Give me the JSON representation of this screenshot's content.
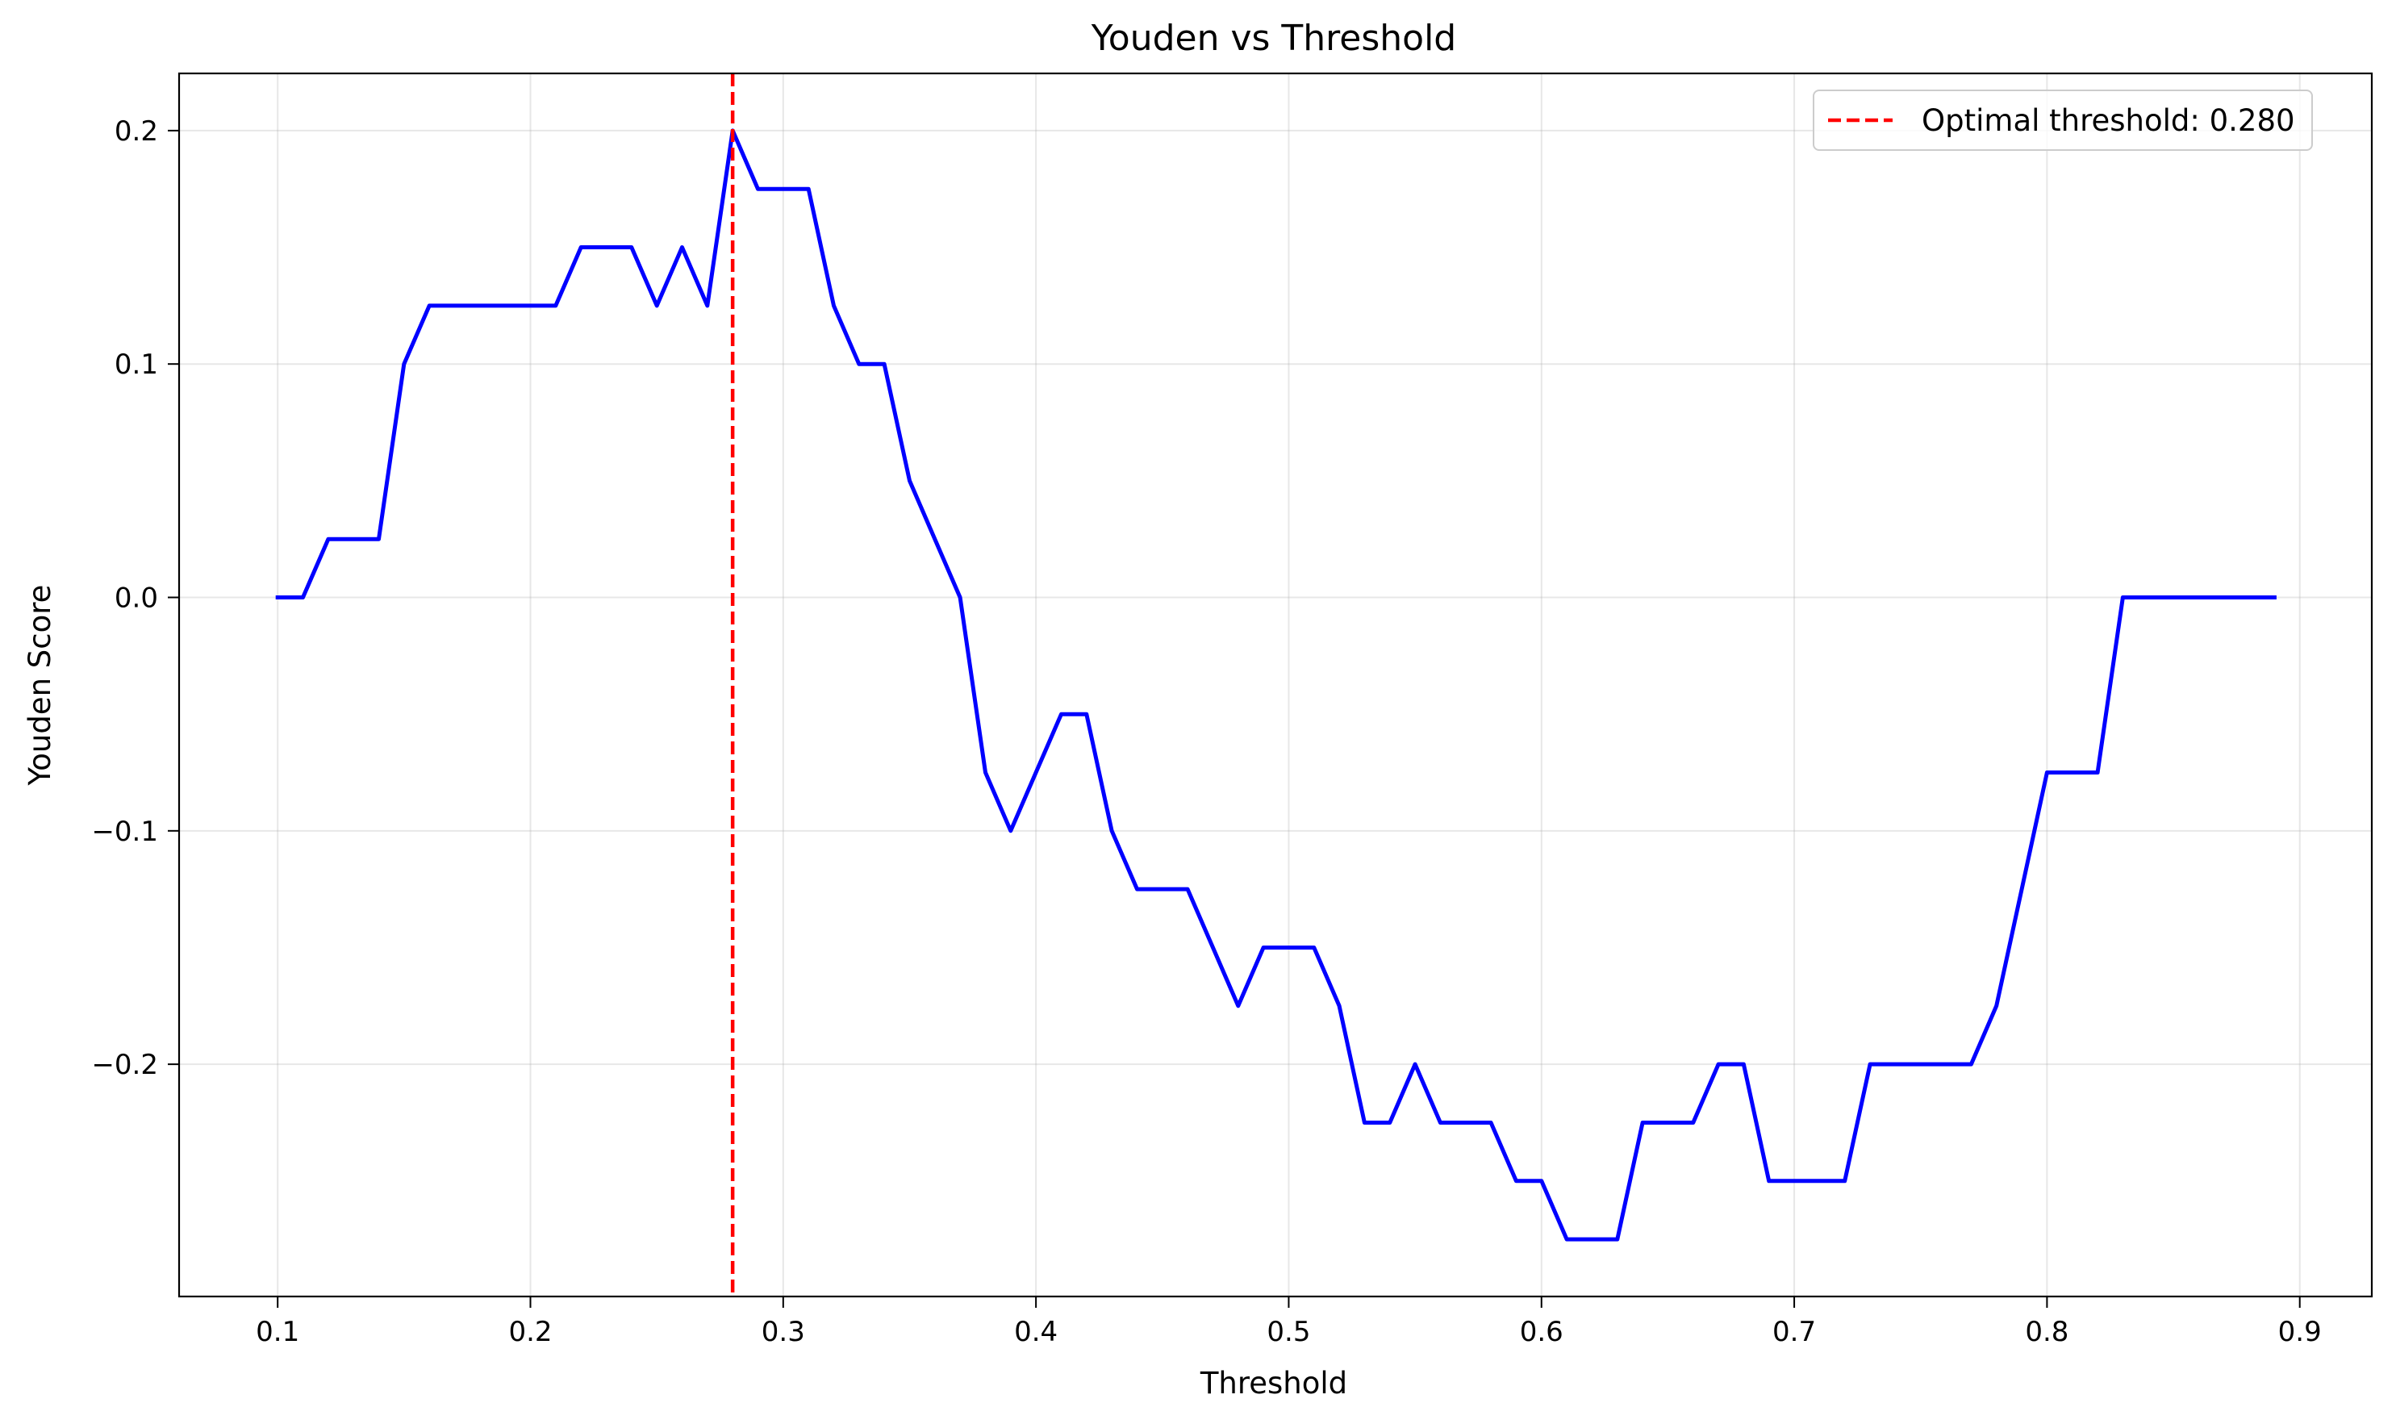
{
  "chart_data": {
    "type": "line",
    "title": "Youden vs Threshold",
    "xlabel": "Threshold",
    "ylabel": "Youden Score",
    "xlim": [
      0.061,
      0.9285
    ],
    "ylim": [
      -0.2995,
      0.2245
    ],
    "xticks": [
      0.1,
      0.2,
      0.3,
      0.4,
      0.5,
      0.6,
      0.7,
      0.8,
      0.9
    ],
    "xtick_labels": [
      "0.1",
      "0.2",
      "0.3",
      "0.4",
      "0.5",
      "0.6",
      "0.7",
      "0.8",
      "0.9"
    ],
    "yticks": [
      -0.2,
      -0.1,
      0.0,
      0.1,
      0.2
    ],
    "ytick_labels": [
      "−0.2",
      "−0.1",
      "0.0",
      "0.1",
      "0.2"
    ],
    "grid": true,
    "legend_position": "top-right",
    "series": [
      {
        "color": "#0000ff",
        "x": [
          0.1,
          0.11,
          0.12,
          0.13,
          0.14,
          0.15,
          0.16,
          0.17,
          0.18,
          0.19,
          0.2,
          0.21,
          0.22,
          0.23,
          0.24,
          0.25,
          0.26,
          0.27,
          0.28,
          0.29,
          0.3,
          0.31,
          0.32,
          0.33,
          0.34,
          0.35,
          0.36,
          0.37,
          0.38,
          0.39,
          0.4,
          0.41,
          0.42,
          0.43,
          0.44,
          0.45,
          0.46,
          0.47,
          0.48,
          0.49,
          0.5,
          0.51,
          0.52,
          0.53,
          0.54,
          0.55,
          0.56,
          0.57,
          0.58,
          0.59,
          0.6,
          0.61,
          0.62,
          0.63,
          0.64,
          0.65,
          0.66,
          0.67,
          0.68,
          0.69,
          0.7,
          0.71,
          0.72,
          0.73,
          0.74,
          0.75,
          0.76,
          0.77,
          0.78,
          0.79,
          0.8,
          0.81,
          0.82,
          0.83,
          0.84,
          0.85,
          0.86,
          0.87,
          0.88,
          0.89
        ],
        "y": [
          0.0,
          0.0,
          0.025,
          0.025,
          0.025,
          0.1,
          0.125,
          0.125,
          0.125,
          0.125,
          0.125,
          0.125,
          0.15,
          0.15,
          0.15,
          0.125,
          0.15,
          0.125,
          0.2,
          0.175,
          0.175,
          0.175,
          0.125,
          0.1,
          0.1,
          0.05,
          0.025,
          0.0,
          -0.075,
          -0.1,
          -0.075,
          -0.05,
          -0.05,
          -0.1,
          -0.125,
          -0.125,
          -0.125,
          -0.15,
          -0.175,
          -0.15,
          -0.15,
          -0.15,
          -0.175,
          -0.225,
          -0.225,
          -0.2,
          -0.225,
          -0.225,
          -0.225,
          -0.25,
          -0.25,
          -0.275,
          -0.275,
          -0.275,
          -0.225,
          -0.225,
          -0.225,
          -0.2,
          -0.2,
          -0.25,
          -0.25,
          -0.25,
          -0.25,
          -0.2,
          -0.2,
          -0.2,
          -0.2,
          -0.2,
          -0.175,
          -0.125,
          -0.075,
          -0.075,
          -0.075,
          0.0,
          0.0,
          0.0,
          0.0,
          0.0,
          0.0,
          0.0
        ]
      }
    ],
    "vline": {
      "x": 0.28,
      "label": "Optimal threshold: 0.280",
      "color": "#ff0000",
      "style": "dashed"
    }
  }
}
